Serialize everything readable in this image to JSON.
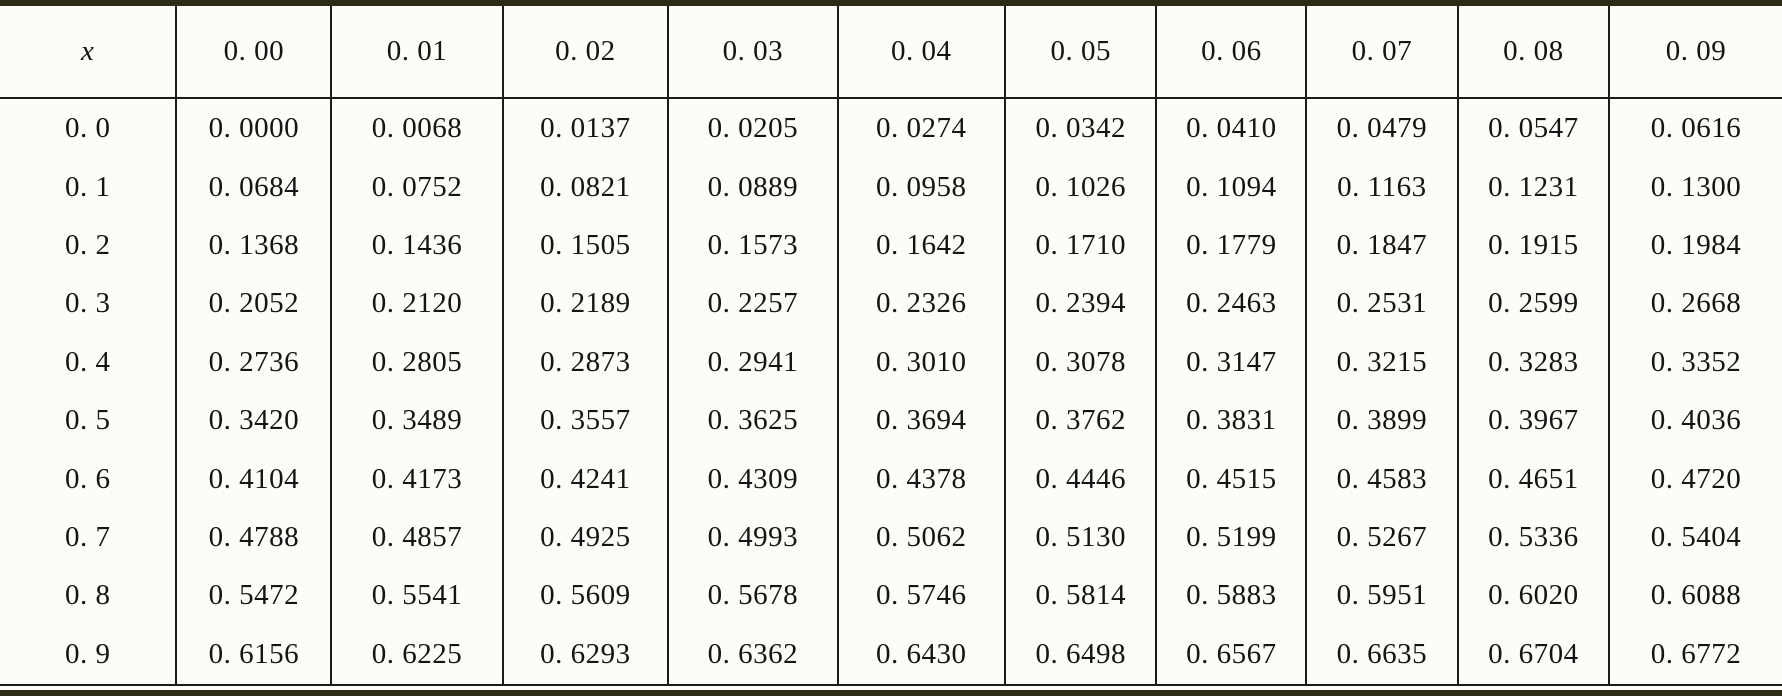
{
  "table": {
    "corner_label": "x",
    "col_headers": [
      "0. 00",
      "0. 01",
      "0. 02",
      "0. 03",
      "0. 04",
      "0. 05",
      "0. 06",
      "0. 07",
      "0. 08",
      "0. 09"
    ],
    "rows": [
      {
        "x": "0. 0",
        "values": [
          "0. 0000",
          "0. 0068",
          "0. 0137",
          "0. 0205",
          "0. 0274",
          "0. 0342",
          "0. 0410",
          "0. 0479",
          "0. 0547",
          "0. 0616"
        ]
      },
      {
        "x": "0. 1",
        "values": [
          "0. 0684",
          "0. 0752",
          "0. 0821",
          "0. 0889",
          "0. 0958",
          "0. 1026",
          "0. 1094",
          "0. 1163",
          "0. 1231",
          "0. 1300"
        ]
      },
      {
        "x": "0. 2",
        "values": [
          "0. 1368",
          "0. 1436",
          "0. 1505",
          "0. 1573",
          "0. 1642",
          "0. 1710",
          "0. 1779",
          "0. 1847",
          "0. 1915",
          "0. 1984"
        ]
      },
      {
        "x": "0. 3",
        "values": [
          "0. 2052",
          "0. 2120",
          "0. 2189",
          "0. 2257",
          "0. 2326",
          "0. 2394",
          "0. 2463",
          "0. 2531",
          "0. 2599",
          "0. 2668"
        ]
      },
      {
        "x": "0. 4",
        "values": [
          "0. 2736",
          "0. 2805",
          "0. 2873",
          "0. 2941",
          "0. 3010",
          "0. 3078",
          "0. 3147",
          "0. 3215",
          "0. 3283",
          "0. 3352"
        ]
      },
      {
        "x": "0. 5",
        "values": [
          "0. 3420",
          "0. 3489",
          "0. 3557",
          "0. 3625",
          "0. 3694",
          "0. 3762",
          "0. 3831",
          "0. 3899",
          "0. 3967",
          "0. 4036"
        ]
      },
      {
        "x": "0. 6",
        "values": [
          "0. 4104",
          "0. 4173",
          "0. 4241",
          "0. 4309",
          "0. 4378",
          "0. 4446",
          "0. 4515",
          "0. 4583",
          "0. 4651",
          "0. 4720"
        ]
      },
      {
        "x": "0. 7",
        "values": [
          "0. 4788",
          "0. 4857",
          "0. 4925",
          "0. 4993",
          "0. 5062",
          "0. 5130",
          "0. 5199",
          "0. 5267",
          "0. 5336",
          "0. 5404"
        ]
      },
      {
        "x": "0. 8",
        "values": [
          "0. 5472",
          "0. 5541",
          "0. 5609",
          "0. 5678",
          "0. 5746",
          "0. 5814",
          "0. 5883",
          "0. 5951",
          "0. 6020",
          "0. 6088"
        ]
      },
      {
        "x": "0. 9",
        "values": [
          "0. 6156",
          "0. 6225",
          "0. 6293",
          "0. 6362",
          "0. 6430",
          "0. 6498",
          "0. 6567",
          "0. 6635",
          "0. 6704",
          "0. 6772"
        ]
      }
    ]
  },
  "colors": {
    "thick_rule": "#2b2b18",
    "thin_rule": "#1c1c1c",
    "background": "#fcfcf8",
    "text": "#141414"
  }
}
